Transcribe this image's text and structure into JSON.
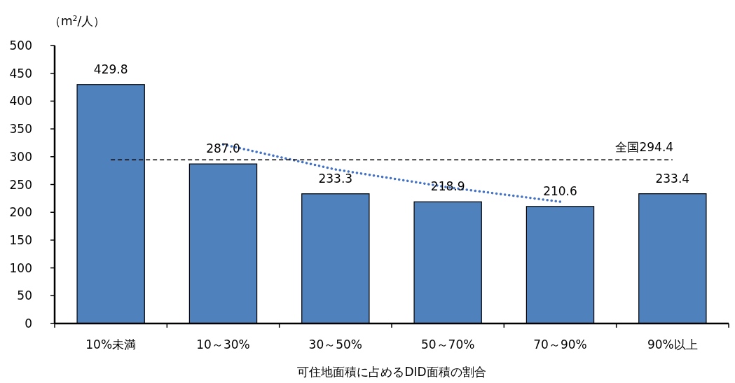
{
  "chart_data": {
    "type": "bar",
    "ylabel": "（m$^{2}$/人）",
    "xlabel": "可住地面積に占めるDID面積の割合",
    "categories": [
      "10%未満",
      "10～30%",
      "30～50%",
      "50～70%",
      "70～90%",
      "90%以上"
    ],
    "series": [
      {
        "color": "#4f81bd",
        "values": [
          429.8,
          287.0,
          233.3,
          218.9,
          210.6,
          233.4
        ],
        "value_labels": [
          "429.8",
          "287.0",
          "233.3",
          "218.9",
          "210.6",
          "233.4"
        ]
      },
      {
        "type": "line",
        "color": "#4472c4",
        "line_style": "dotted",
        "values": [
          null,
          322,
          277,
          245,
          219,
          null
        ]
      }
    ],
    "ylim": [
      0,
      500
    ],
    "yticks": [
      0,
      50,
      100,
      150,
      200,
      250,
      300,
      350,
      400,
      450,
      500
    ],
    "ref_lines": [
      {
        "axis": "y",
        "value": 294.4,
        "label": "全国294.4",
        "line_style": "dashed",
        "color": "#000000"
      }
    ],
    "grid": false
  }
}
